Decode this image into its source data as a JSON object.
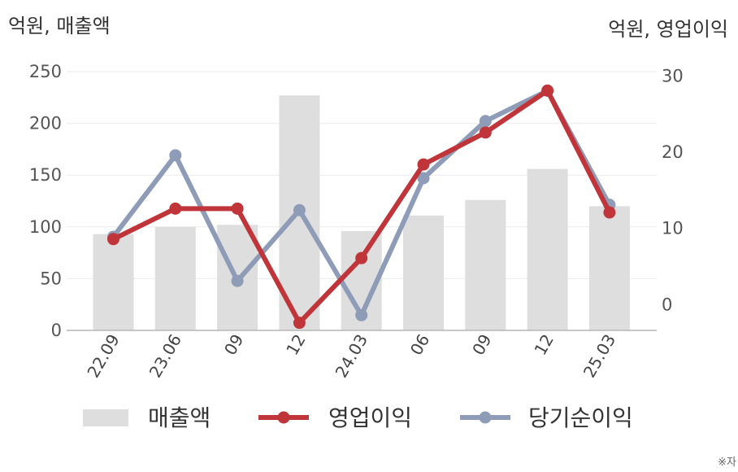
{
  "unit_left": "억원, 매출액",
  "unit_right": "억원, 영업이익",
  "note": "※자",
  "chart_data": {
    "type": "bar",
    "categories": [
      "22.09",
      "23.06",
      "09",
      "12",
      "24.03",
      "06",
      "09",
      "12",
      "25.03"
    ],
    "bar_series": {
      "name": "매출액",
      "color": "#dedede",
      "values": [
        93,
        100,
        102,
        227,
        96,
        111,
        126,
        156,
        120
      ]
    },
    "line_series": [
      {
        "name": "영업이익",
        "color": "#c0353a",
        "values": [
          8.5,
          12.5,
          12.5,
          -2.5,
          6,
          18.3,
          22.5,
          28,
          12
        ]
      },
      {
        "name": "당기순이익",
        "color": "#8f9cb7",
        "values": [
          8.8,
          19.5,
          3,
          12.3,
          -1.5,
          16.5,
          24,
          28,
          13
        ]
      }
    ],
    "y_left": {
      "ylim": [
        0,
        250
      ],
      "ticks": [
        0,
        50,
        100,
        150,
        200,
        250
      ]
    },
    "y_right": {
      "ylim": [
        -3.5,
        30.5
      ],
      "ticks": [
        0,
        10,
        20,
        30
      ]
    },
    "grid": true,
    "legend": "bottom"
  }
}
